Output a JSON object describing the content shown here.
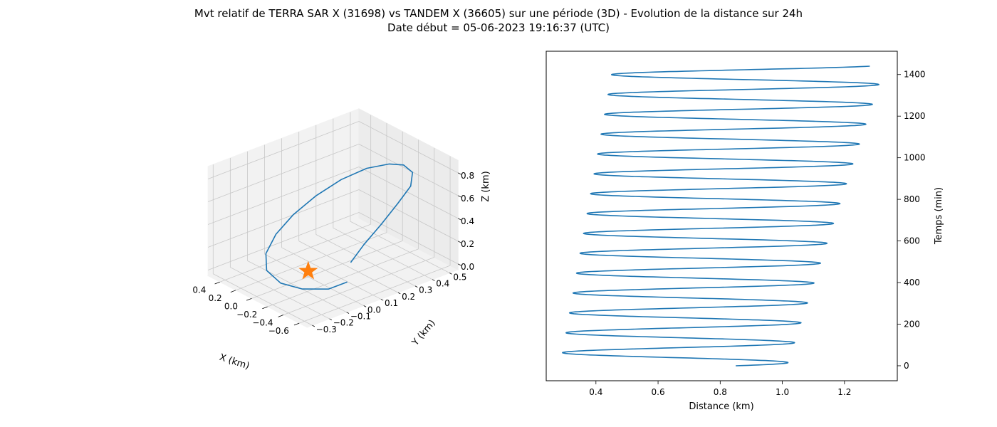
{
  "figure": {
    "title_line1": "Mvt relatif de TERRA SAR X (31698) vs TANDEM X (36605) sur une période (3D) - Evolution de la distance sur 24h",
    "title_line2": "Date début = 05-06-2023 19:16:37 (UTC)"
  },
  "colors": {
    "series": "#1f77b4",
    "marker": "#ff7f0e"
  },
  "chart_data": [
    {
      "type": "line3d",
      "xlabel": "X (km)",
      "ylabel": "Y (km)",
      "zlabel": "Z (km)",
      "x_ticks": [
        "−0.6",
        "−0.4",
        "−0.2",
        "0.0",
        "0.2",
        "0.4"
      ],
      "y_ticks": [
        "−0.3",
        "−0.2",
        "−0.1",
        "0.0",
        "0.1",
        "0.2",
        "0.3",
        "0.4",
        "0.5"
      ],
      "z_ticks": [
        "0.0",
        "0.2",
        "0.4",
        "0.6",
        "0.8"
      ],
      "grid": true,
      "series": [
        {
          "x": [
            -0.6,
            -0.47,
            -0.25,
            -0.02,
            0.2,
            0.36,
            0.45,
            0.47,
            0.44,
            0.34,
            0.17,
            -0.05,
            -0.25,
            -0.45,
            -0.6,
            -0.65,
            -0.66,
            -0.64,
            -0.6
          ],
          "y": [
            -0.05,
            -0.1,
            -0.15,
            -0.17,
            -0.15,
            -0.08,
            0.02,
            0.13,
            0.25,
            0.35,
            0.42,
            0.45,
            0.44,
            0.4,
            0.32,
            0.22,
            0.12,
            0.03,
            -0.03
          ],
          "z": [
            0.15,
            0.07,
            0.02,
            0.0,
            0.02,
            0.07,
            0.15,
            0.25,
            0.36,
            0.48,
            0.6,
            0.7,
            0.77,
            0.8,
            0.78,
            0.7,
            0.58,
            0.45,
            0.31
          ]
        }
      ],
      "marker": {
        "type": "star",
        "x": 0.0,
        "y": 0.0,
        "z": 0.0
      }
    },
    {
      "type": "line",
      "xlabel": "Distance (km)",
      "ylabel": "Temps (min)",
      "xlim": [
        0.24,
        1.37
      ],
      "ylim": [
        -72,
        1512
      ],
      "x_ticks": [
        0.4,
        0.6,
        0.8,
        1.0,
        1.2
      ],
      "y_ticks": [
        0,
        200,
        400,
        600,
        800,
        1000,
        1200,
        1400
      ],
      "grid": false,
      "oscillation": {
        "period_min": 94.8,
        "t_start": 0,
        "t_end": 1440,
        "start_distance": 0.85,
        "max_start": 1.015,
        "max_end": 1.33,
        "min_start": 0.285,
        "min_end": 0.455
      }
    }
  ]
}
